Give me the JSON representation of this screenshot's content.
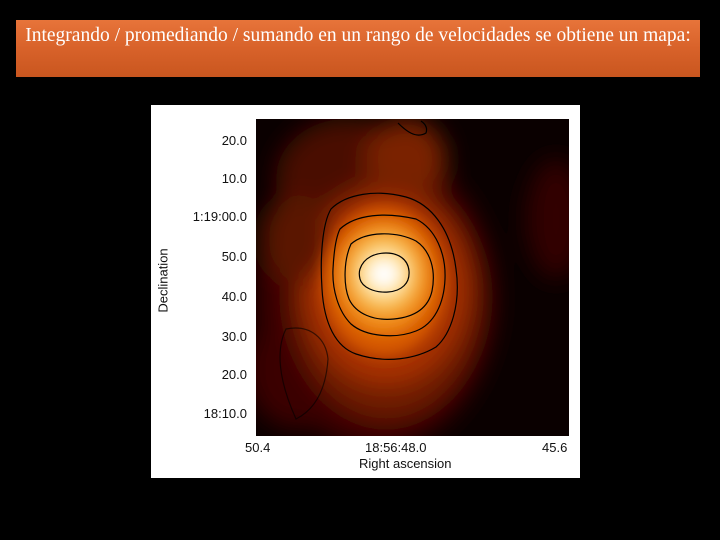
{
  "slide": {
    "title": "Integrando / promediando / sumando en un rango de velocidades se obtiene un mapa:"
  },
  "figure": {
    "ylabel": "Declination",
    "xlabel": "Right ascension",
    "y_ticks": [
      "20.0",
      "10.0",
      "1:19:00.0",
      "50.0",
      "40.0",
      "30.0",
      "20.0",
      "18:10.0"
    ],
    "x_ticks": [
      "50.4",
      "18:56:48.0",
      "45.6"
    ],
    "colormap": [
      "#000000",
      "#3a0500",
      "#8a1c00",
      "#d75a00",
      "#f5a623",
      "#ffe9a8",
      "#ffffff"
    ],
    "contour_color": "#000000"
  }
}
